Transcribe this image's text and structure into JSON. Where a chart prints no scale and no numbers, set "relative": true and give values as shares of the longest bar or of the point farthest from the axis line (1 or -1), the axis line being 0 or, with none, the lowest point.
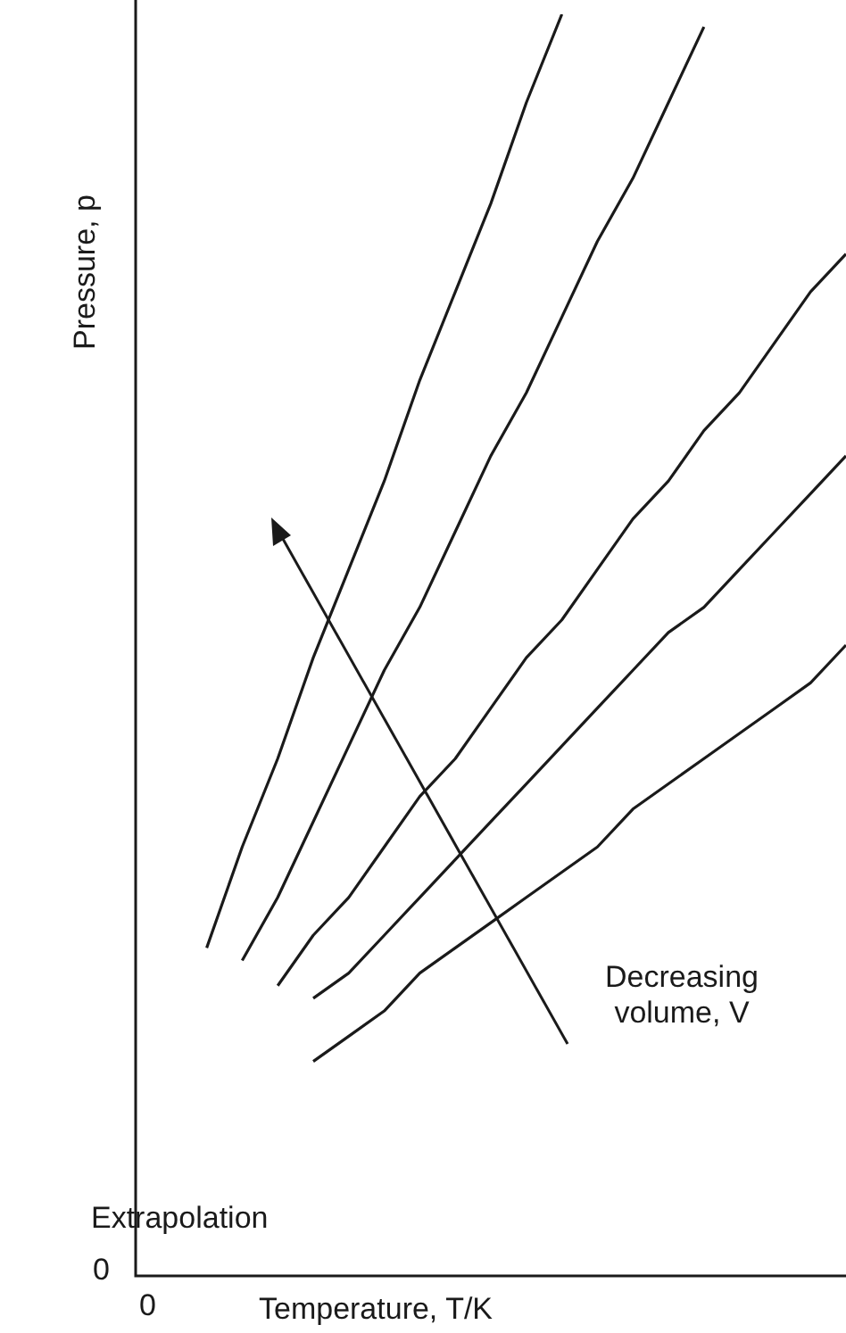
{
  "chart_data": {
    "type": "line",
    "relative": true,
    "xlabel": "Temperature, T/K",
    "ylabel": "Pressure, p",
    "categories": [
      null,
      null,
      null,
      null,
      null,
      null,
      null,
      null,
      null,
      null,
      null,
      null,
      null,
      null,
      null,
      null,
      null,
      null,
      null,
      null,
      null
    ],
    "series": [
      {
        "color": "#1a1a1a",
        "values": [
          null,
          null,
          0.26,
          0.34,
          0.41,
          0.49,
          0.56,
          0.63,
          0.71,
          0.78,
          0.85,
          0.93,
          1.0,
          null,
          null,
          null,
          null,
          null,
          null,
          null,
          null
        ]
      },
      {
        "color": "#1a1a1a",
        "values": [
          null,
          null,
          null,
          0.25,
          0.3,
          0.36,
          0.42,
          0.48,
          0.53,
          0.59,
          0.65,
          0.7,
          0.76,
          0.82,
          0.87,
          0.93,
          0.99,
          null,
          null,
          null,
          null
        ]
      },
      {
        "color": "#1a1a1a",
        "values": [
          null,
          null,
          null,
          null,
          0.23,
          0.27,
          0.3,
          0.34,
          0.38,
          0.41,
          0.45,
          0.49,
          0.52,
          0.56,
          0.6,
          0.63,
          0.67,
          0.7,
          0.74,
          0.78,
          0.81
        ]
      },
      {
        "color": "#1a1a1a",
        "values": [
          null,
          null,
          null,
          null,
          null,
          0.22,
          0.24,
          0.27,
          0.3,
          0.33,
          0.36,
          0.39,
          0.42,
          0.45,
          0.48,
          0.51,
          0.53,
          0.56,
          0.59,
          0.62,
          0.65
        ]
      },
      {
        "color": "#1a1a1a",
        "values": [
          null,
          null,
          null,
          null,
          null,
          0.17,
          0.19,
          0.21,
          0.24,
          0.26,
          0.28,
          0.3,
          0.32,
          0.34,
          0.37,
          0.39,
          0.41,
          0.43,
          0.45,
          0.47,
          0.5
        ]
      }
    ],
    "annotations": [
      "Decreasing volume, V",
      "Extrapolation",
      "0",
      "0"
    ],
    "legend": false,
    "marker": "none"
  }
}
